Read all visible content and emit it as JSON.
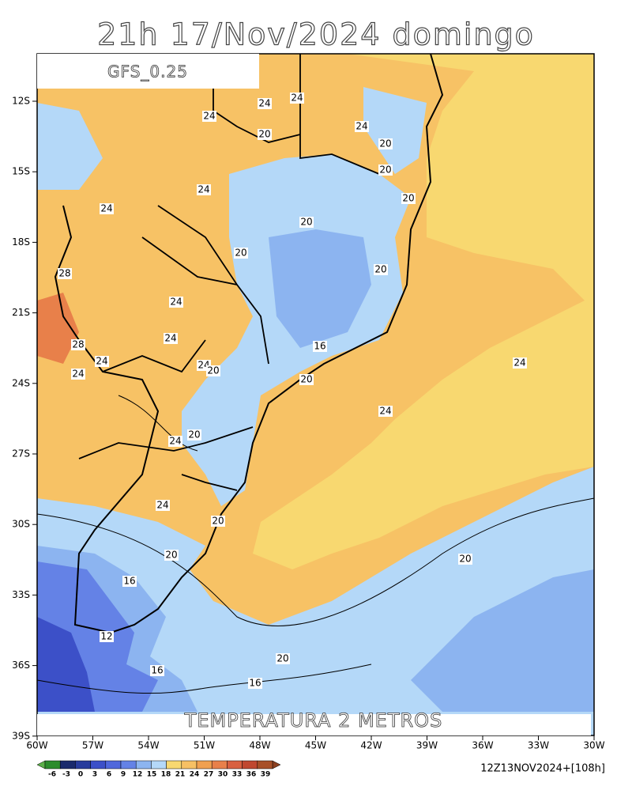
{
  "title": "21h 17/Nov/2024 domingo",
  "model": "GFS_0.25",
  "variable": "TEMPERATURA 2 METROS",
  "run": "12Z13NOV2024+[108h]",
  "lat_labels": [
    "12S",
    "15S",
    "18S",
    "21S",
    "24S",
    "27S",
    "30S",
    "33S",
    "36S",
    "39S"
  ],
  "lon_labels": [
    "60W",
    "57W",
    "54W",
    "51W",
    "48W",
    "45W",
    "42W",
    "39W",
    "36W",
    "33W",
    "30W"
  ],
  "contour_labels": [
    24,
    24,
    24,
    20,
    24,
    20,
    20,
    24,
    20,
    24,
    20,
    20,
    20,
    28,
    24,
    16,
    28,
    24,
    24,
    24,
    20,
    24,
    24,
    20,
    24,
    20,
    24,
    24,
    20,
    20,
    20,
    16,
    12,
    20,
    16,
    16
  ],
  "colorbar": {
    "labels": [
      -6,
      -3,
      0,
      3,
      6,
      9,
      12,
      15,
      18,
      21,
      24,
      27,
      30,
      33,
      36,
      39
    ],
    "colors": [
      "#5cb04a",
      "#2c8c2c",
      "#1a2a6c",
      "#283c9c",
      "#3c50c8",
      "#5068dc",
      "#6482e6",
      "#8cb4f0",
      "#b4d8f8",
      "#f8d870",
      "#f6c064",
      "#f0a050",
      "#e8804a",
      "#d86040",
      "#c04830",
      "#a85028",
      "#8c4020"
    ]
  }
}
